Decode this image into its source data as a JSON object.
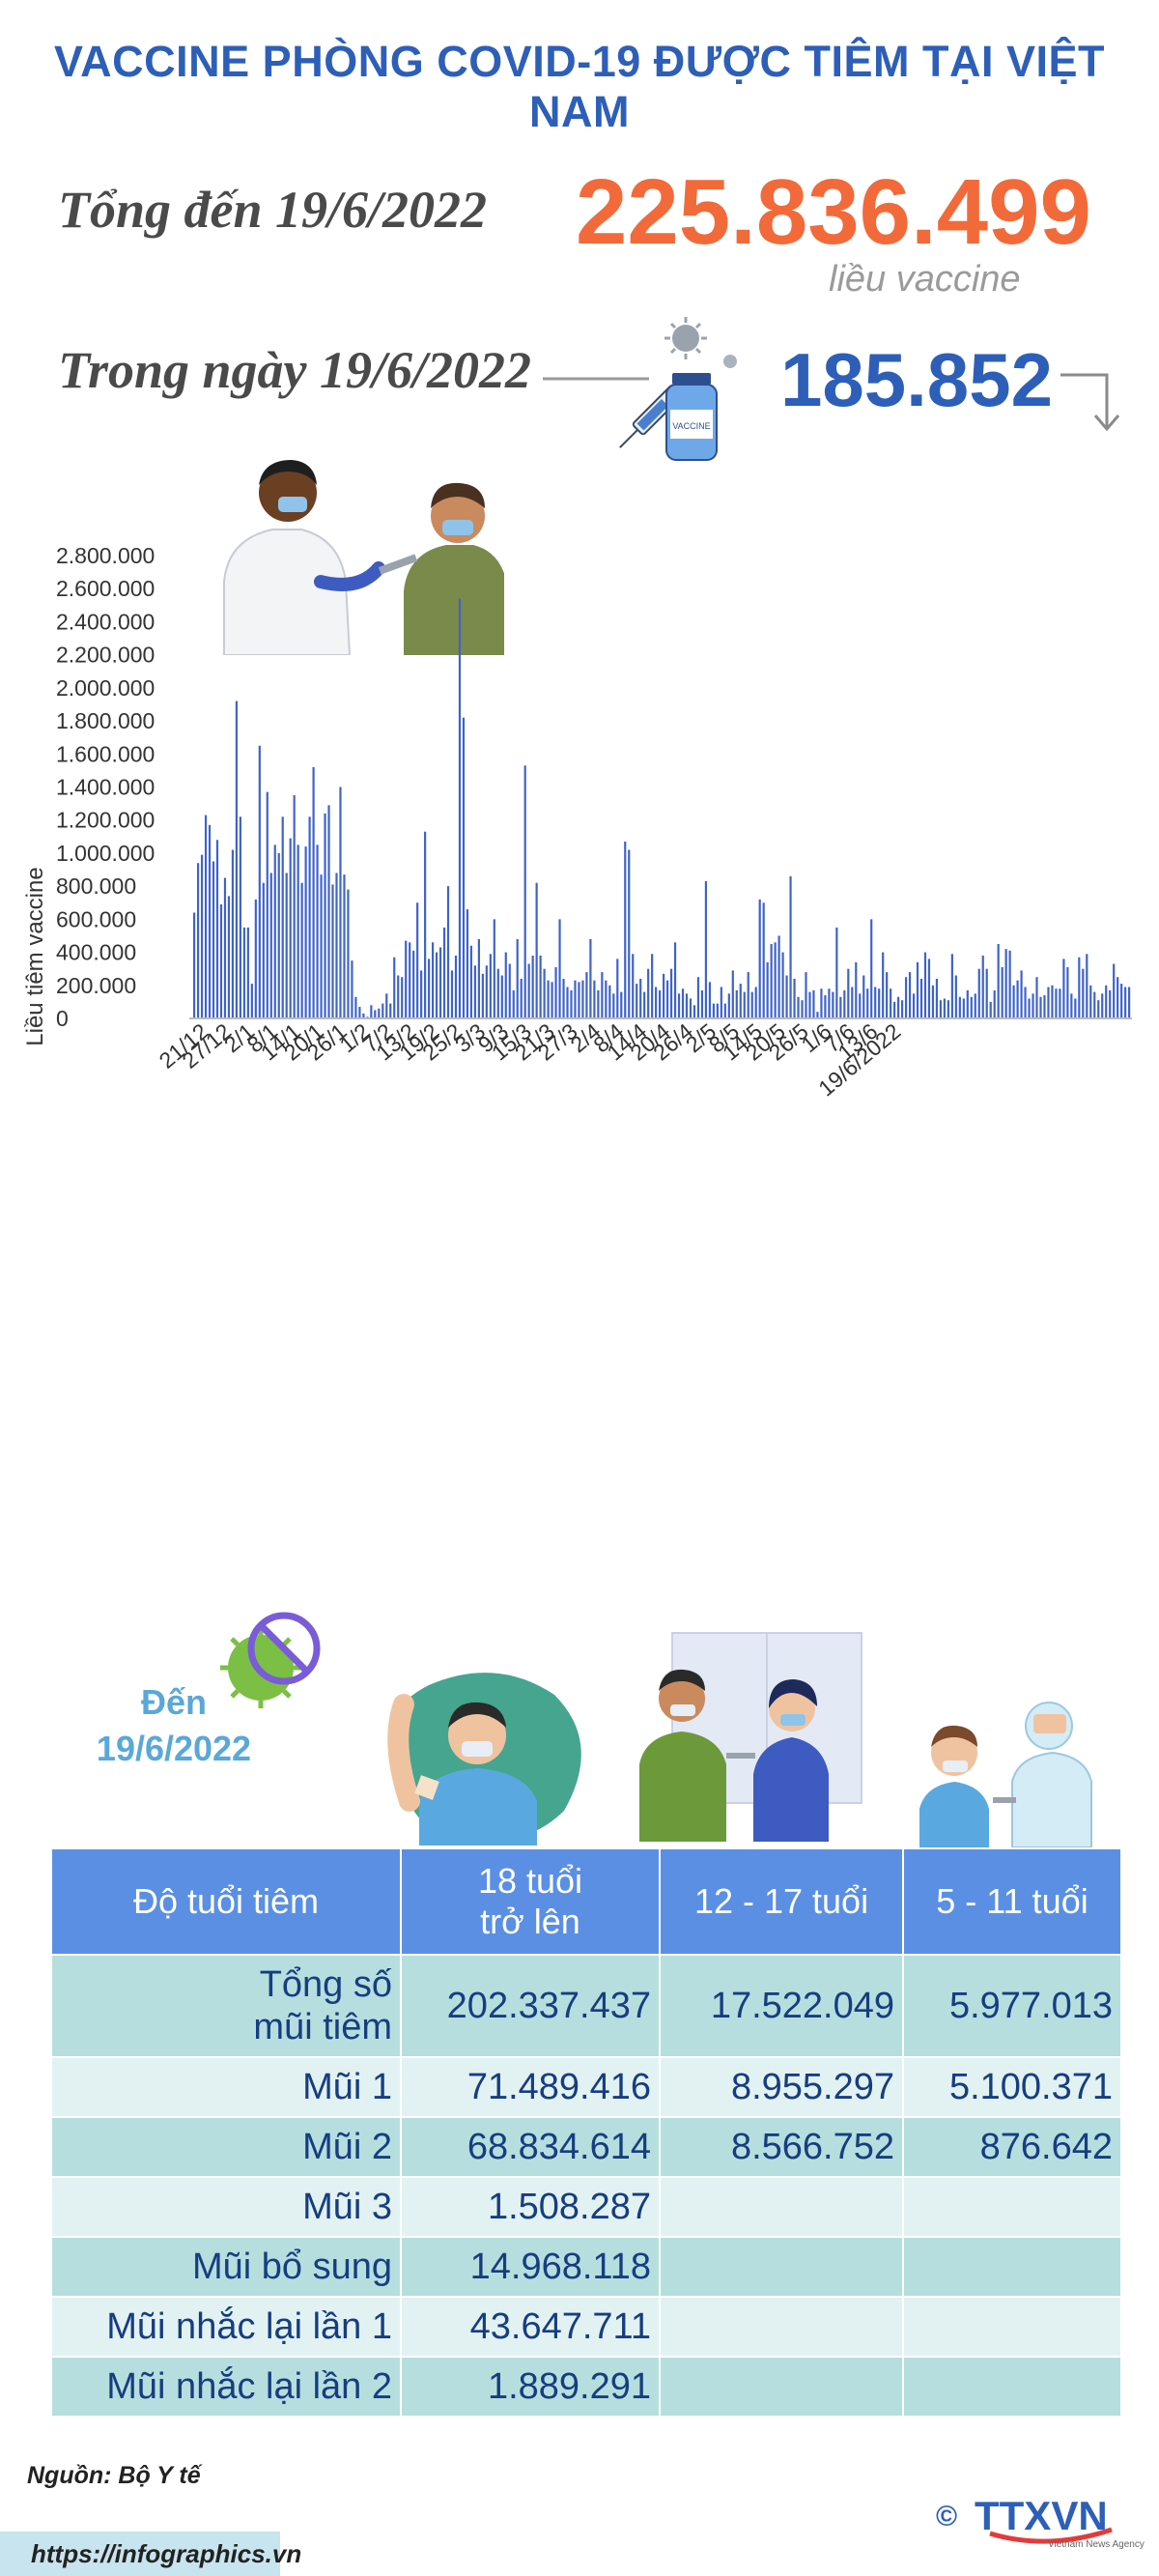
{
  "header": {
    "title": "VACCINE PHÒNG COVID-19 ĐƯỢC TIÊM TẠI VIỆT NAM"
  },
  "summary": {
    "total_label": "Tổng đến 19/6/2022",
    "total_value": "225.836.499",
    "total_unit": "liều vaccine",
    "day_label": "Trong ngày 19/6/2022",
    "day_value": "185.852",
    "vial_text": "VACCINE"
  },
  "colors": {
    "title_blue": "#2d5fb8",
    "orange": "#f26a3a",
    "bar_blue": "#3f63c8",
    "header_blue": "#5b8fe3",
    "teal_dark": "#b6dede",
    "teal_light": "#e2f2f2",
    "to_date": "#5aa8d8"
  },
  "icons": [
    "vaccine-syringe-icon",
    "vaccine-vial-icon",
    "virus-icon",
    "arrow-down-icon",
    "no-virus-icon",
    "doctor-illustration",
    "vaccinated-man-illustration",
    "vaccination-scene-illustration",
    "child-vaccination-illustration",
    "ttxvn-logo"
  ],
  "chart_data": {
    "type": "bar",
    "ylabel": "Liều tiêm vaccine",
    "xlabel": "",
    "ylim": [
      0,
      2800000
    ],
    "yticks": [
      0,
      200000,
      400000,
      600000,
      800000,
      1000000,
      1200000,
      1400000,
      1600000,
      1800000,
      2000000,
      2200000,
      2400000,
      2600000,
      2800000
    ],
    "ytick_labels": [
      "0",
      "200.000",
      "400.000",
      "600.000",
      "800.000",
      "1.000.000",
      "1.200.000",
      "1.400.000",
      "1.600.000",
      "1.800.000",
      "2.000.000",
      "2.200.000",
      "2.400.000",
      "2.600.000",
      "2.800.000"
    ],
    "x_tick_labels": [
      "21/12",
      "27/12",
      "2/1",
      "8/1",
      "14/1",
      "20/1",
      "26/1",
      "1/2",
      "7/2",
      "13/2",
      "19/2",
      "25/2",
      "3/3",
      "9/3",
      "15/3",
      "21/3",
      "27/3",
      "2/4",
      "8/4",
      "14/4",
      "20/4",
      "26/4",
      "2/5",
      "8/5",
      "14/5",
      "20/5",
      "26/5",
      "1/6",
      "7/6",
      "13/6",
      "19/6/2022"
    ],
    "x_tick_index": [
      0,
      6,
      12,
      18,
      24,
      30,
      36,
      42,
      48,
      54,
      60,
      66,
      72,
      78,
      84,
      90,
      96,
      102,
      108,
      114,
      120,
      126,
      132,
      138,
      144,
      150,
      156,
      162,
      168,
      174,
      180
    ],
    "grid": false,
    "legend": "none",
    "values": [
      640000,
      940000,
      990000,
      1230000,
      1170000,
      950000,
      1080000,
      690000,
      850000,
      740000,
      1020000,
      1920000,
      1220000,
      550000,
      550000,
      210000,
      720000,
      1650000,
      820000,
      1370000,
      880000,
      1050000,
      1000000,
      1220000,
      880000,
      1090000,
      1350000,
      1050000,
      820000,
      1040000,
      1220000,
      1520000,
      1050000,
      870000,
      1240000,
      1290000,
      810000,
      880000,
      1400000,
      870000,
      780000,
      350000,
      130000,
      70000,
      30000,
      10000,
      80000,
      50000,
      60000,
      90000,
      150000,
      90000,
      370000,
      260000,
      250000,
      470000,
      460000,
      410000,
      700000,
      290000,
      1130000,
      360000,
      460000,
      400000,
      430000,
      550000,
      800000,
      290000,
      380000,
      2540000,
      1820000,
      660000,
      440000,
      320000,
      480000,
      270000,
      320000,
      390000,
      600000,
      300000,
      260000,
      400000,
      330000,
      170000,
      480000,
      240000,
      1530000,
      330000,
      380000,
      820000,
      380000,
      300000,
      230000,
      220000,
      310000,
      600000,
      240000,
      190000,
      170000,
      230000,
      220000,
      230000,
      280000,
      480000,
      230000,
      170000,
      280000,
      230000,
      200000,
      150000,
      360000,
      160000,
      1070000,
      1020000,
      390000,
      210000,
      240000,
      160000,
      300000,
      390000,
      190000,
      170000,
      270000,
      230000,
      300000,
      460000,
      150000,
      180000,
      150000,
      120000,
      80000,
      250000,
      170000,
      830000,
      220000,
      90000,
      90000,
      190000,
      90000,
      150000,
      290000,
      170000,
      210000,
      160000,
      280000,
      160000,
      190000,
      720000,
      700000,
      340000,
      450000,
      460000,
      500000,
      400000,
      260000,
      860000,
      240000,
      130000,
      110000,
      280000,
      160000,
      170000,
      40000,
      180000,
      140000,
      180000,
      160000,
      550000,
      130000,
      170000,
      300000,
      190000,
      340000,
      150000,
      260000,
      180000,
      600000,
      190000,
      180000,
      400000,
      280000,
      180000,
      100000,
      130000,
      110000,
      250000,
      280000,
      150000,
      340000,
      240000,
      400000,
      360000,
      200000,
      240000,
      110000,
      120000,
      110000,
      390000,
      260000,
      130000,
      120000,
      170000,
      130000,
      150000,
      300000,
      380000,
      300000,
      100000,
      170000,
      450000,
      310000,
      420000,
      410000,
      200000,
      230000,
      290000,
      190000,
      120000,
      150000,
      250000,
      130000,
      140000,
      190000,
      200000,
      180000,
      180000,
      360000,
      310000,
      150000,
      120000,
      370000,
      300000,
      390000,
      200000,
      160000,
      110000,
      150000,
      200000,
      170000,
      330000,
      250000,
      210000,
      190000,
      190000
    ]
  },
  "table": {
    "caption_line1": "Đến",
    "caption_line2": "19/6/2022",
    "headers": [
      "Độ tuổi tiêm",
      "18 tuổi trở lên",
      "12 - 17 tuổi",
      "5 - 11 tuổi"
    ],
    "rows": [
      {
        "label": "Tổng số mũi tiêm",
        "adult": "202.337.437",
        "teen": "17.522.049",
        "child": "5.977.013"
      },
      {
        "label": "Mũi 1",
        "adult": "71.489.416",
        "teen": "8.955.297",
        "child": "5.100.371"
      },
      {
        "label": "Mũi 2",
        "adult": "68.834.614",
        "teen": "8.566.752",
        "child": "876.642"
      },
      {
        "label": "Mũi 3",
        "adult": "1.508.287",
        "teen": "",
        "child": ""
      },
      {
        "label": "Mũi bổ sung",
        "adult": "14.968.118",
        "teen": "",
        "child": ""
      },
      {
        "label": "Mũi nhắc lại lần 1",
        "adult": "43.647.711",
        "teen": "",
        "child": ""
      },
      {
        "label": "Mũi nhắc lại lần 2",
        "adult": "1.889.291",
        "teen": "",
        "child": ""
      }
    ]
  },
  "footer": {
    "source": "Nguồn: Bộ Y tế",
    "url": "https://infographics.vn",
    "logo_text": "TTXVN",
    "logo_copy": "©",
    "logo_sub": "Vietnam News Agency"
  }
}
